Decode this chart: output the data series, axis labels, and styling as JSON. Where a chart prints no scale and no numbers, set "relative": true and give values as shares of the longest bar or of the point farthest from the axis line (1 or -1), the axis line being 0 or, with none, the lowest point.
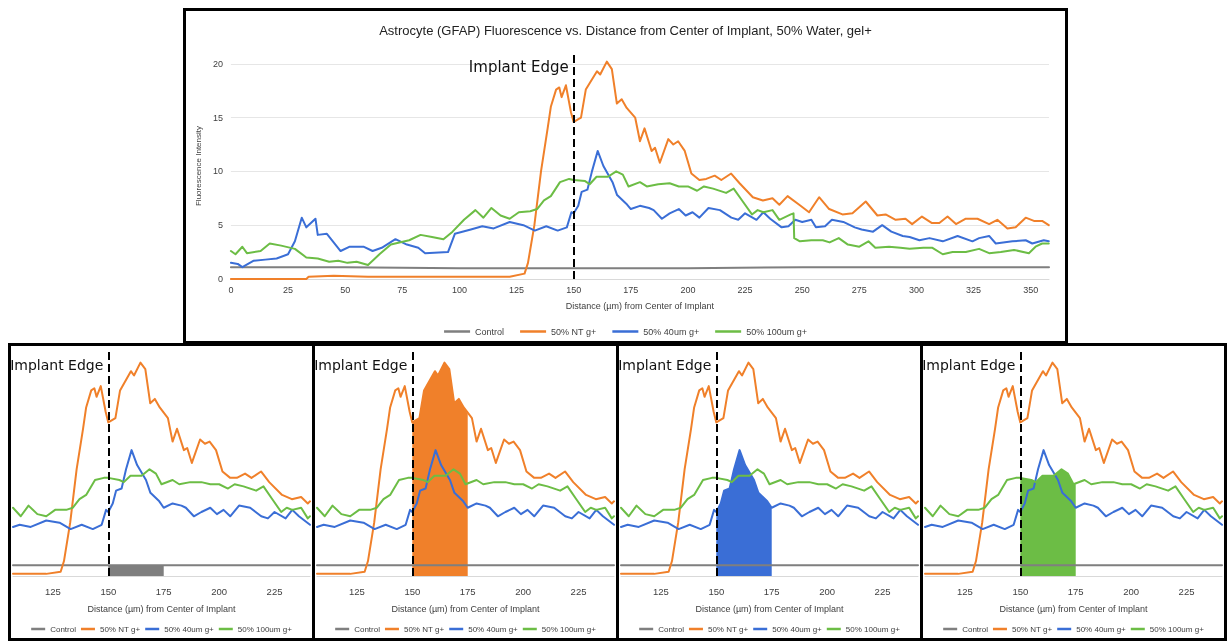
{
  "chart_data": [
    {
      "type": "line",
      "title": "Astrocyte (GFAP) Fluorescence vs. Distance from Center of Implant, 50% Water, gel+",
      "xlabel": "Distance (µm) from Center of Implant",
      "ylabel": "Fluorescence Intensity",
      "xlim": [
        0,
        358
      ],
      "xticks": [
        0,
        25,
        50,
        75,
        100,
        125,
        150,
        175,
        200,
        225,
        250,
        275,
        300,
        325,
        350
      ],
      "ylim": [
        0,
        21
      ],
      "yticks": [
        0,
        5,
        10,
        15,
        20
      ],
      "grid": "y",
      "legend": "bottom",
      "ref_lines": [
        {
          "axis": "x",
          "value": 150,
          "label": "Implant Edge",
          "color": "#000000",
          "line_style": "dashed"
        }
      ],
      "series": [
        {
          "name": "Control",
          "color": "#7f7f7f",
          "x": [
            0,
            50,
            100,
            150,
            200,
            250,
            300,
            358
          ],
          "values": [
            1.1,
            1.1,
            1,
            1,
            1,
            1.1,
            1.1,
            1.1
          ]
        },
        {
          "name": "50% NT g+",
          "color": "#f0802a",
          "x": [
            0,
            33,
            34,
            45,
            60,
            80,
            100,
            122,
            128.5,
            130,
            132.8,
            135.7,
            138.6,
            140,
            142.3,
            143.7,
            144.7,
            146.6,
            148.8,
            150,
            153.2,
            155.3,
            160.2,
            161.6,
            164.5,
            166.7,
            168.9,
            171,
            173.2,
            176.9,
            179,
            181,
            184.1,
            185.6,
            187.7,
            191.4,
            193.6,
            195.7,
            198.6,
            201.5,
            205,
            208,
            211.7,
            214.6,
            218.9,
            222.6,
            228.4,
            232.8,
            237,
            240,
            243.6,
            248.7,
            253,
            257.4,
            261.8,
            267.6,
            272,
            277.8,
            282.9,
            286.5,
            290.9,
            295.2,
            298.1,
            302.4,
            306.8,
            310,
            313.6,
            317.3,
            321.6,
            326.7,
            331.8,
            335.4,
            339.8,
            343.4,
            347.8,
            351.4,
            355,
            357.9
          ],
          "values": [
            0,
            0,
            0.2,
            0.3,
            0.2,
            0.2,
            0.2,
            0.2,
            0.5,
            1.5,
            5,
            10,
            14,
            16,
            17.6,
            17.8,
            16.9,
            18,
            15.5,
            14.6,
            15,
            17.6,
            19.3,
            19,
            20.2,
            19.5,
            16.3,
            16.7,
            15.9,
            15,
            12.8,
            14,
            11.9,
            12.2,
            10.8,
            13,
            12.5,
            12.8,
            11.9,
            9.8,
            9.2,
            9.3,
            9.6,
            9.2,
            9.8,
            8.9,
            7.6,
            7.3,
            7.5,
            6.9,
            7.7,
            6.9,
            6.2,
            7.6,
            6.5,
            6,
            6.1,
            7.2,
            5.9,
            6,
            5.5,
            5.6,
            5.1,
            5.8,
            5.2,
            5.2,
            5.8,
            5.1,
            5.6,
            5.6,
            5.1,
            5.5,
            4.7,
            4.8,
            5.7,
            5.4,
            5.4,
            5
          ]
        },
        {
          "name": "50% 40um g+",
          "color": "#3a6ed6",
          "x": [
            0,
            3,
            5,
            10,
            15,
            20,
            25,
            28,
            31,
            33,
            37,
            38,
            42,
            48,
            52,
            58,
            62,
            66,
            72,
            77,
            82,
            85,
            95,
            98,
            105,
            110,
            115,
            122,
            128,
            133,
            138,
            143,
            147,
            149,
            150,
            152,
            153.5,
            156,
            158,
            160.5,
            163,
            167,
            169,
            173,
            175,
            179,
            183,
            185,
            188.6,
            192,
            196,
            199,
            202,
            205,
            209,
            214,
            219,
            222,
            225,
            230,
            233,
            236,
            241,
            244,
            247,
            250,
            254,
            256,
            260,
            263,
            268,
            273,
            276,
            281,
            285,
            289,
            294,
            297,
            301.3,
            305.7,
            311.5,
            318,
            324.5,
            327.4,
            331.8,
            334.7,
            342,
            347.8,
            350.7,
            355.7,
            357.9
          ],
          "values": [
            1.5,
            1.4,
            1.1,
            1.7,
            1.8,
            1.9,
            2.3,
            3.5,
            5.7,
            4.8,
            5.6,
            4.1,
            4.2,
            2.6,
            3,
            3,
            2.6,
            2.9,
            3.7,
            3.2,
            2.9,
            2.4,
            2.5,
            4.2,
            4.6,
            4.9,
            4.7,
            5.3,
            5,
            4.5,
            4.9,
            4.5,
            4.8,
            6.2,
            6.1,
            6.8,
            8.1,
            8.3,
            10,
            11.9,
            10.5,
            9,
            7.8,
            7,
            6.5,
            6.8,
            6.6,
            6.4,
            5.6,
            6.1,
            6.5,
            5.9,
            6.2,
            5.7,
            6.6,
            6.4,
            5.7,
            5.5,
            6.1,
            5.5,
            6.2,
            5.6,
            4.8,
            4.9,
            5.5,
            5.3,
            5.5,
            4.8,
            4.9,
            5.5,
            5.3,
            4.8,
            4.6,
            4.4,
            5,
            4.4,
            4,
            3.9,
            3.6,
            3.8,
            3.5,
            4,
            3.5,
            3.8,
            4,
            3.3,
            3.5,
            3.6,
            3.3,
            3.6,
            3.5
          ]
        },
        {
          "name": "50% 100um g+",
          "color": "#6cbd45",
          "x": [
            0,
            2,
            5,
            7,
            13,
            17,
            22,
            28,
            33,
            38,
            43,
            47,
            51,
            55,
            60,
            65,
            70,
            78,
            83,
            88,
            93,
            97,
            102,
            107,
            110.5,
            114,
            118,
            122,
            126,
            131,
            134,
            137,
            140,
            144,
            148,
            150,
            155,
            157,
            160,
            165,
            168.6,
            171.5,
            174,
            179,
            182,
            187,
            192,
            196,
            200,
            204,
            207,
            211,
            216.7,
            220,
            224,
            228,
            230.5,
            233,
            237,
            240,
            245,
            246.2,
            246.5,
            249,
            254,
            259,
            262,
            266,
            270,
            275,
            279,
            282,
            288,
            293,
            297,
            303,
            307,
            311.5,
            315.8,
            321.6,
            327.4,
            331.8,
            336.9,
            342.7,
            349.2,
            352.1,
            355,
            357.9
          ],
          "values": [
            2.6,
            2.3,
            3,
            2.4,
            2.6,
            3.3,
            3.1,
            2.8,
            2,
            1.9,
            1.6,
            1.7,
            1.5,
            1.6,
            1.3,
            2.3,
            3.2,
            3.6,
            4.1,
            3.9,
            3.7,
            4.4,
            5.5,
            6.4,
            5.7,
            6.6,
            5.9,
            5.6,
            6.2,
            6.3,
            6.5,
            7.3,
            7.7,
            9,
            9.3,
            9.2,
            9.1,
            8.8,
            9.5,
            9.5,
            10,
            9.7,
            8.6,
            9,
            8.6,
            8.8,
            8.9,
            8.6,
            8.6,
            8.2,
            8.6,
            8.4,
            8,
            8.4,
            7.2,
            6,
            6.4,
            6.2,
            6.4,
            5.5,
            6,
            6.1,
            3.8,
            3.5,
            3.6,
            3.6,
            3.4,
            3.8,
            3.2,
            3,
            3.5,
            2.9,
            3,
            2.9,
            2.8,
            2.9,
            2.9,
            2.3,
            2.5,
            2.5,
            2.8,
            2.4,
            2.5,
            2.7,
            2.4,
            3,
            3.3,
            3.3
          ]
        }
      ]
    },
    {
      "type": "line",
      "relative": true,
      "xlabel": "Distance (µm) from Center of Implant",
      "xlim": [
        107,
        241
      ],
      "xticks": [
        125,
        150,
        175,
        200,
        225
      ],
      "legend": "bottom",
      "ref_lines": [
        {
          "axis": "x",
          "value": 150,
          "label": "Implant Edge",
          "color": "#000000",
          "line_style": "dashed"
        }
      ],
      "series": [
        {
          "type": "area",
          "color": "#7f7f7f",
          "x": [
            150,
            175
          ],
          "values": [
            0.05,
            0.05
          ]
        },
        {
          "name": "Control",
          "color": "#7f7f7f",
          "x": [
            107,
            150,
            200,
            241
          ],
          "values": [
            0.05,
            0.05,
            0.05,
            0.05
          ]
        },
        {
          "name": "50% NT g+",
          "color": "#f0802a",
          "x": [
            107,
            122,
            128.5,
            130,
            132.8,
            135.7,
            138.6,
            140,
            142.3,
            143.7,
            144.7,
            146.6,
            148.8,
            150,
            153.2,
            155.3,
            160.2,
            161.6,
            164.5,
            166.7,
            168.9,
            171,
            173.2,
            176.9,
            179,
            181,
            184.1,
            185.6,
            187.7,
            191.4,
            193.6,
            195.7,
            198.6,
            201.5,
            205,
            208,
            211.7,
            214.6,
            218.9,
            222.6,
            228.4,
            232.8,
            237,
            240,
            241
          ],
          "values": [
            0.01,
            0.01,
            0.02,
            0.07,
            0.25,
            0.5,
            0.69,
            0.79,
            0.87,
            0.88,
            0.84,
            0.89,
            0.77,
            0.72,
            0.74,
            0.87,
            0.96,
            0.94,
            1,
            0.97,
            0.81,
            0.83,
            0.79,
            0.74,
            0.63,
            0.69,
            0.59,
            0.6,
            0.53,
            0.64,
            0.62,
            0.63,
            0.59,
            0.49,
            0.46,
            0.46,
            0.48,
            0.46,
            0.49,
            0.44,
            0.38,
            0.36,
            0.37,
            0.34,
            0.35
          ]
        },
        {
          "name": "50% 40um g+",
          "color": "#3a6ed6",
          "x": [
            107,
            110,
            115,
            122,
            128,
            133,
            138,
            143,
            147,
            149,
            150,
            152,
            153.5,
            156,
            158,
            160.5,
            163,
            167,
            169,
            173,
            175,
            179,
            183,
            185,
            188.6,
            192,
            196,
            199,
            202,
            205,
            209,
            214,
            219,
            222,
            225,
            230,
            233,
            236,
            241
          ],
          "values": [
            0.23,
            0.24,
            0.23,
            0.26,
            0.25,
            0.22,
            0.24,
            0.22,
            0.24,
            0.31,
            0.3,
            0.34,
            0.4,
            0.41,
            0.5,
            0.59,
            0.52,
            0.45,
            0.39,
            0.35,
            0.32,
            0.34,
            0.33,
            0.32,
            0.28,
            0.3,
            0.32,
            0.29,
            0.31,
            0.28,
            0.33,
            0.32,
            0.28,
            0.27,
            0.3,
            0.27,
            0.31,
            0.28,
            0.24
          ]
        },
        {
          "name": "50% 100um g+",
          "color": "#6cbd45",
          "x": [
            107,
            110.5,
            114,
            118,
            122,
            126,
            131,
            134,
            137,
            140,
            144,
            148,
            150,
            155,
            157,
            160,
            165,
            168.6,
            171.5,
            174,
            179,
            182,
            187,
            192,
            196,
            200,
            204,
            207,
            211,
            216.7,
            220,
            224,
            228,
            230.5,
            233,
            237,
            240,
            241
          ],
          "values": [
            0.32,
            0.28,
            0.33,
            0.29,
            0.28,
            0.31,
            0.31,
            0.32,
            0.36,
            0.38,
            0.45,
            0.46,
            0.46,
            0.45,
            0.44,
            0.47,
            0.47,
            0.5,
            0.48,
            0.43,
            0.45,
            0.43,
            0.44,
            0.44,
            0.43,
            0.43,
            0.41,
            0.43,
            0.42,
            0.4,
            0.42,
            0.36,
            0.3,
            0.32,
            0.31,
            0.32,
            0.27,
            0.28
          ]
        }
      ]
    },
    {
      "type": "line",
      "relative": true,
      "xlabel": "Distance (µm) from Center of Implant",
      "xlim": [
        107,
        241
      ],
      "xticks": [
        125,
        150,
        175,
        200,
        225
      ],
      "legend": "bottom",
      "ref_lines": [
        {
          "axis": "x",
          "value": 150,
          "label": "Implant Edge",
          "color": "#000000",
          "line_style": "dashed"
        }
      ],
      "series": [
        {
          "type": "area",
          "color": "#f0802a",
          "x": [
            150,
            153.2,
            155.3,
            160.2,
            161.6,
            164.5,
            166.7,
            168.9,
            171,
            173.2,
            175
          ],
          "values": [
            0.72,
            0.74,
            0.87,
            0.96,
            0.94,
            1,
            0.97,
            0.81,
            0.83,
            0.79,
            0.76
          ]
        },
        {
          "name": "Control",
          "color": "#7f7f7f",
          "x": [
            107,
            150,
            200,
            241
          ],
          "values": [
            0.05,
            0.05,
            0.05,
            0.05
          ]
        },
        {
          "name": "50% NT g+",
          "color": "#f0802a",
          "x": [
            107,
            122,
            128.5,
            130,
            132.8,
            135.7,
            138.6,
            140,
            142.3,
            143.7,
            144.7,
            146.6,
            148.8,
            150,
            153.2,
            155.3,
            160.2,
            161.6,
            164.5,
            166.7,
            168.9,
            171,
            173.2,
            176.9,
            179,
            181,
            184.1,
            185.6,
            187.7,
            191.4,
            193.6,
            195.7,
            198.6,
            201.5,
            205,
            208,
            211.7,
            214.6,
            218.9,
            222.6,
            228.4,
            232.8,
            237,
            240,
            241
          ],
          "values": [
            0.01,
            0.01,
            0.02,
            0.07,
            0.25,
            0.5,
            0.69,
            0.79,
            0.87,
            0.88,
            0.84,
            0.89,
            0.77,
            0.72,
            0.74,
            0.87,
            0.96,
            0.94,
            1,
            0.97,
            0.81,
            0.83,
            0.79,
            0.74,
            0.63,
            0.69,
            0.59,
            0.6,
            0.53,
            0.64,
            0.62,
            0.63,
            0.59,
            0.49,
            0.46,
            0.46,
            0.48,
            0.46,
            0.49,
            0.44,
            0.38,
            0.36,
            0.37,
            0.34,
            0.35
          ]
        },
        {
          "name": "50% 40um g+",
          "color": "#3a6ed6",
          "x": [
            107,
            110,
            115,
            122,
            128,
            133,
            138,
            143,
            147,
            149,
            150,
            152,
            153.5,
            156,
            158,
            160.5,
            163,
            167,
            169,
            173,
            175,
            179,
            183,
            185,
            188.6,
            192,
            196,
            199,
            202,
            205,
            209,
            214,
            219,
            222,
            225,
            230,
            233,
            236,
            241
          ],
          "values": [
            0.23,
            0.24,
            0.23,
            0.26,
            0.25,
            0.22,
            0.24,
            0.22,
            0.24,
            0.31,
            0.3,
            0.34,
            0.4,
            0.41,
            0.5,
            0.59,
            0.52,
            0.45,
            0.39,
            0.35,
            0.32,
            0.34,
            0.33,
            0.32,
            0.28,
            0.3,
            0.32,
            0.29,
            0.31,
            0.28,
            0.33,
            0.32,
            0.28,
            0.27,
            0.3,
            0.27,
            0.31,
            0.28,
            0.24
          ]
        },
        {
          "name": "50% 100um g+",
          "color": "#6cbd45",
          "x": [
            107,
            110.5,
            114,
            118,
            122,
            126,
            131,
            134,
            137,
            140,
            144,
            148,
            150,
            155,
            157,
            160,
            165,
            168.6,
            171.5,
            174,
            179,
            182,
            187,
            192,
            196,
            200,
            204,
            207,
            211,
            216.7,
            220,
            224,
            228,
            230.5,
            233,
            237,
            240,
            241
          ],
          "values": [
            0.32,
            0.28,
            0.33,
            0.29,
            0.28,
            0.31,
            0.31,
            0.32,
            0.36,
            0.38,
            0.45,
            0.46,
            0.46,
            0.45,
            0.44,
            0.47,
            0.47,
            0.5,
            0.48,
            0.43,
            0.45,
            0.43,
            0.44,
            0.44,
            0.43,
            0.43,
            0.41,
            0.43,
            0.42,
            0.4,
            0.42,
            0.36,
            0.3,
            0.32,
            0.31,
            0.32,
            0.27,
            0.28
          ]
        }
      ]
    },
    {
      "type": "line",
      "relative": true,
      "xlabel": "Distance (µm) from Center of Implant",
      "xlim": [
        107,
        241
      ],
      "xticks": [
        125,
        150,
        175,
        200,
        225
      ],
      "legend": "bottom",
      "ref_lines": [
        {
          "axis": "x",
          "value": 150,
          "label": "Implant Edge",
          "color": "#000000",
          "line_style": "dashed"
        }
      ],
      "series": [
        {
          "type": "area",
          "color": "#3a6ed6",
          "x": [
            150,
            152,
            153.5,
            156,
            158,
            160.5,
            163,
            167,
            169,
            173,
            175
          ],
          "values": [
            0.3,
            0.34,
            0.4,
            0.41,
            0.5,
            0.59,
            0.52,
            0.45,
            0.39,
            0.35,
            0.32
          ]
        },
        {
          "name": "Control",
          "color": "#7f7f7f",
          "x": [
            107,
            150,
            200,
            241
          ],
          "values": [
            0.05,
            0.05,
            0.05,
            0.05
          ]
        },
        {
          "name": "50% NT g+",
          "color": "#f0802a",
          "x": [
            107,
            122,
            128.5,
            130,
            132.8,
            135.7,
            138.6,
            140,
            142.3,
            143.7,
            144.7,
            146.6,
            148.8,
            150,
            153.2,
            155.3,
            160.2,
            161.6,
            164.5,
            166.7,
            168.9,
            171,
            173.2,
            176.9,
            179,
            181,
            184.1,
            185.6,
            187.7,
            191.4,
            193.6,
            195.7,
            198.6,
            201.5,
            205,
            208,
            211.7,
            214.6,
            218.9,
            222.6,
            228.4,
            232.8,
            237,
            240,
            241
          ],
          "values": [
            0.01,
            0.01,
            0.02,
            0.07,
            0.25,
            0.5,
            0.69,
            0.79,
            0.87,
            0.88,
            0.84,
            0.89,
            0.77,
            0.72,
            0.74,
            0.87,
            0.96,
            0.94,
            1,
            0.97,
            0.81,
            0.83,
            0.79,
            0.74,
            0.63,
            0.69,
            0.59,
            0.6,
            0.53,
            0.64,
            0.62,
            0.63,
            0.59,
            0.49,
            0.46,
            0.46,
            0.48,
            0.46,
            0.49,
            0.44,
            0.38,
            0.36,
            0.37,
            0.34,
            0.35
          ]
        },
        {
          "name": "50% 40um g+",
          "color": "#3a6ed6",
          "x": [
            107,
            110,
            115,
            122,
            128,
            133,
            138,
            143,
            147,
            149,
            150,
            152,
            153.5,
            156,
            158,
            160.5,
            163,
            167,
            169,
            173,
            175,
            179,
            183,
            185,
            188.6,
            192,
            196,
            199,
            202,
            205,
            209,
            214,
            219,
            222,
            225,
            230,
            233,
            236,
            241
          ],
          "values": [
            0.23,
            0.24,
            0.23,
            0.26,
            0.25,
            0.22,
            0.24,
            0.22,
            0.24,
            0.31,
            0.3,
            0.34,
            0.4,
            0.41,
            0.5,
            0.59,
            0.52,
            0.45,
            0.39,
            0.35,
            0.32,
            0.34,
            0.33,
            0.32,
            0.28,
            0.3,
            0.32,
            0.29,
            0.31,
            0.28,
            0.33,
            0.32,
            0.28,
            0.27,
            0.3,
            0.27,
            0.31,
            0.28,
            0.24
          ]
        },
        {
          "name": "50% 100um g+",
          "color": "#6cbd45",
          "x": [
            107,
            110.5,
            114,
            118,
            122,
            126,
            131,
            134,
            137,
            140,
            144,
            148,
            150,
            155,
            157,
            160,
            165,
            168.6,
            171.5,
            174,
            179,
            182,
            187,
            192,
            196,
            200,
            204,
            207,
            211,
            216.7,
            220,
            224,
            228,
            230.5,
            233,
            237,
            240,
            241
          ],
          "values": [
            0.32,
            0.28,
            0.33,
            0.29,
            0.28,
            0.31,
            0.31,
            0.32,
            0.36,
            0.38,
            0.45,
            0.46,
            0.46,
            0.45,
            0.44,
            0.47,
            0.47,
            0.5,
            0.48,
            0.43,
            0.45,
            0.43,
            0.44,
            0.44,
            0.43,
            0.43,
            0.41,
            0.43,
            0.42,
            0.4,
            0.42,
            0.36,
            0.3,
            0.32,
            0.31,
            0.32,
            0.27,
            0.28
          ]
        }
      ]
    },
    {
      "type": "line",
      "relative": true,
      "xlabel": "Distance (µm) from Center of Implant",
      "xlim": [
        107,
        241
      ],
      "xticks": [
        125,
        150,
        175,
        200,
        225
      ],
      "legend": "bottom",
      "ref_lines": [
        {
          "axis": "x",
          "value": 150,
          "label": "Implant Edge",
          "color": "#000000",
          "line_style": "dashed"
        }
      ],
      "series": [
        {
          "type": "area",
          "color": "#6cbd45",
          "x": [
            150,
            155,
            157,
            160,
            165,
            168.6,
            171.5,
            174,
            175
          ],
          "values": [
            0.46,
            0.45,
            0.44,
            0.47,
            0.47,
            0.5,
            0.48,
            0.43,
            0.43
          ]
        },
        {
          "name": "Control",
          "color": "#7f7f7f",
          "x": [
            107,
            150,
            200,
            241
          ],
          "values": [
            0.05,
            0.05,
            0.05,
            0.05
          ]
        },
        {
          "name": "50% NT g+",
          "color": "#f0802a",
          "x": [
            107,
            122,
            128.5,
            130,
            132.8,
            135.7,
            138.6,
            140,
            142.3,
            143.7,
            144.7,
            146.6,
            148.8,
            150,
            153.2,
            155.3,
            160.2,
            161.6,
            164.5,
            166.7,
            168.9,
            171,
            173.2,
            176.9,
            179,
            181,
            184.1,
            185.6,
            187.7,
            191.4,
            193.6,
            195.7,
            198.6,
            201.5,
            205,
            208,
            211.7,
            214.6,
            218.9,
            222.6,
            228.4,
            232.8,
            237,
            240,
            241
          ],
          "values": [
            0.01,
            0.01,
            0.02,
            0.07,
            0.25,
            0.5,
            0.69,
            0.79,
            0.87,
            0.88,
            0.84,
            0.89,
            0.77,
            0.72,
            0.74,
            0.87,
            0.96,
            0.94,
            1,
            0.97,
            0.81,
            0.83,
            0.79,
            0.74,
            0.63,
            0.69,
            0.59,
            0.6,
            0.53,
            0.64,
            0.62,
            0.63,
            0.59,
            0.49,
            0.46,
            0.46,
            0.48,
            0.46,
            0.49,
            0.44,
            0.38,
            0.36,
            0.37,
            0.34,
            0.35
          ]
        },
        {
          "name": "50% 40um g+",
          "color": "#3a6ed6",
          "x": [
            107,
            110,
            115,
            122,
            128,
            133,
            138,
            143,
            147,
            149,
            150,
            152,
            153.5,
            156,
            158,
            160.5,
            163,
            167,
            169,
            173,
            175,
            179,
            183,
            185,
            188.6,
            192,
            196,
            199,
            202,
            205,
            209,
            214,
            219,
            222,
            225,
            230,
            233,
            236,
            241
          ],
          "values": [
            0.23,
            0.24,
            0.23,
            0.26,
            0.25,
            0.22,
            0.24,
            0.22,
            0.24,
            0.31,
            0.3,
            0.34,
            0.4,
            0.41,
            0.5,
            0.59,
            0.52,
            0.45,
            0.39,
            0.35,
            0.32,
            0.34,
            0.33,
            0.32,
            0.28,
            0.3,
            0.32,
            0.29,
            0.31,
            0.28,
            0.33,
            0.32,
            0.28,
            0.27,
            0.3,
            0.27,
            0.31,
            0.28,
            0.24
          ]
        },
        {
          "name": "50% 100um g+",
          "color": "#6cbd45",
          "x": [
            107,
            110.5,
            114,
            118,
            122,
            126,
            131,
            134,
            137,
            140,
            144,
            148,
            150,
            155,
            157,
            160,
            165,
            168.6,
            171.5,
            174,
            179,
            182,
            187,
            192,
            196,
            200,
            204,
            207,
            211,
            216.7,
            220,
            224,
            228,
            230.5,
            233,
            237,
            240,
            241
          ],
          "values": [
            0.32,
            0.28,
            0.33,
            0.29,
            0.28,
            0.31,
            0.31,
            0.32,
            0.36,
            0.38,
            0.45,
            0.46,
            0.46,
            0.45,
            0.44,
            0.47,
            0.47,
            0.5,
            0.48,
            0.43,
            0.45,
            0.43,
            0.44,
            0.44,
            0.43,
            0.43,
            0.41,
            0.43,
            0.42,
            0.4,
            0.42,
            0.36,
            0.3,
            0.32,
            0.31,
            0.32,
            0.27,
            0.28
          ]
        }
      ]
    }
  ]
}
